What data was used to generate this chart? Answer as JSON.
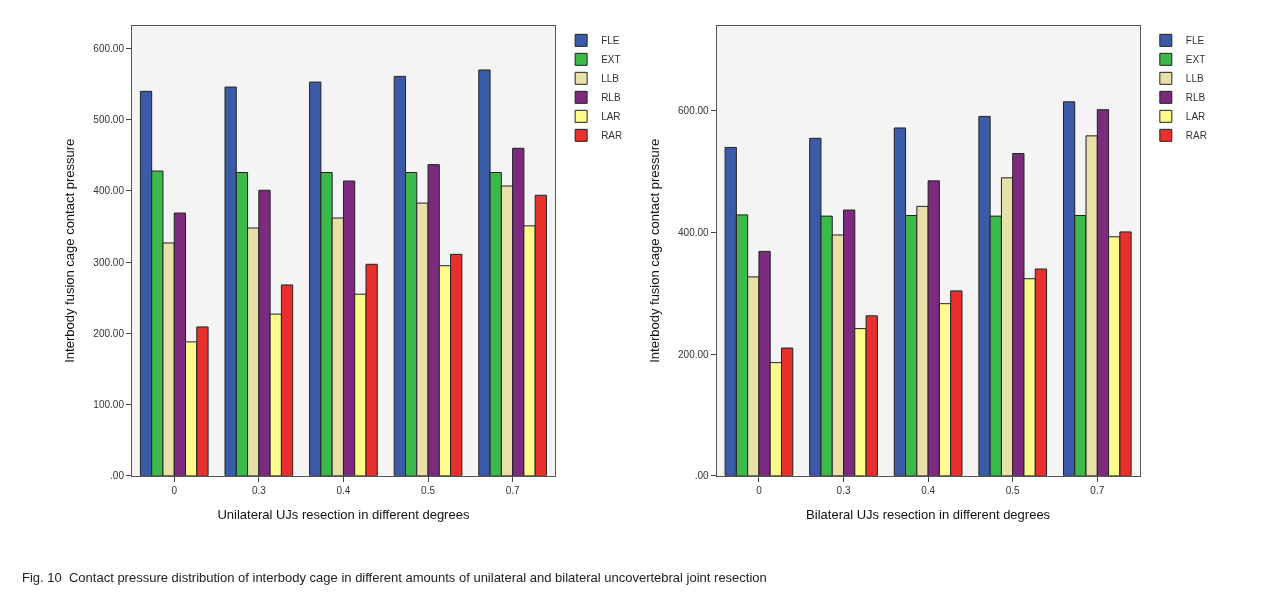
{
  "chart_data": [
    {
      "type": "bar",
      "xlabel": "Unilateral UJs resection in different degrees",
      "ylabel": "Interbody fusion cage contact pressure",
      "categories": [
        "0",
        "0.3",
        "0.4",
        "0.5",
        "0.7"
      ],
      "ylim": [
        0,
        632
      ],
      "yticks": [
        {
          "value": 0,
          "label": ".00"
        },
        {
          "value": 100,
          "label": "100.00"
        },
        {
          "value": 200,
          "label": "200.00"
        },
        {
          "value": 300,
          "label": "300.00"
        },
        {
          "value": 400,
          "label": "400.00"
        },
        {
          "value": 500,
          "label": "500.00"
        },
        {
          "value": 600,
          "label": "600.00"
        }
      ],
      "grid": false,
      "legend": "top right",
      "series": [
        {
          "name": "FLE",
          "color": "#3b5ba9",
          "values": [
            540,
            546,
            553,
            561,
            570
          ]
        },
        {
          "name": "EXT",
          "color": "#3cb94a",
          "values": [
            428,
            426,
            426,
            426,
            426
          ]
        },
        {
          "name": "LLB",
          "color": "#e8e0a8",
          "values": [
            327,
            348,
            362,
            383,
            407
          ]
        },
        {
          "name": "RLB",
          "color": "#7b2a7e",
          "values": [
            369,
            401,
            414,
            437,
            460
          ]
        },
        {
          "name": "LAR",
          "color": "#fdfb8c",
          "values": [
            188,
            227,
            255,
            295,
            351
          ]
        },
        {
          "name": "RAR",
          "color": "#e8302c",
          "values": [
            209,
            268,
            297,
            311,
            394
          ]
        }
      ],
      "annotations": [
        "Fig. 10  Contact pressure distribution of interbody cage in different amounts of unilateral and bilateral uncovertebral joint resection"
      ]
    },
    {
      "type": "bar",
      "xlabel": "Bilateral UJs resection in different degrees",
      "ylabel": "Interbody fusion cage contact pressure",
      "categories": [
        "0",
        "0.3",
        "0.4",
        "0.5",
        "0.7"
      ],
      "ylim": [
        0,
        740
      ],
      "yticks": [
        {
          "value": 0,
          "label": ".00"
        },
        {
          "value": 200,
          "label": "200.00"
        },
        {
          "value": 400,
          "label": "400.00"
        },
        {
          "value": 600,
          "label": "600.00"
        }
      ],
      "grid": false,
      "legend": "top right",
      "series": [
        {
          "name": "FLE",
          "color": "#3b5ba9",
          "values": [
            540,
            555,
            572,
            591,
            615
          ]
        },
        {
          "name": "EXT",
          "color": "#3cb94a",
          "values": [
            429,
            427,
            428,
            427,
            428
          ]
        },
        {
          "name": "LLB",
          "color": "#e8e0a8",
          "values": [
            327,
            396,
            443,
            490,
            559
          ]
        },
        {
          "name": "RLB",
          "color": "#7b2a7e",
          "values": [
            369,
            437,
            485,
            530,
            602
          ]
        },
        {
          "name": "LAR",
          "color": "#fdfb8c",
          "values": [
            186,
            242,
            283,
            324,
            393
          ]
        },
        {
          "name": "RAR",
          "color": "#e8302c",
          "values": [
            210,
            263,
            304,
            340,
            401
          ]
        }
      ]
    }
  ]
}
